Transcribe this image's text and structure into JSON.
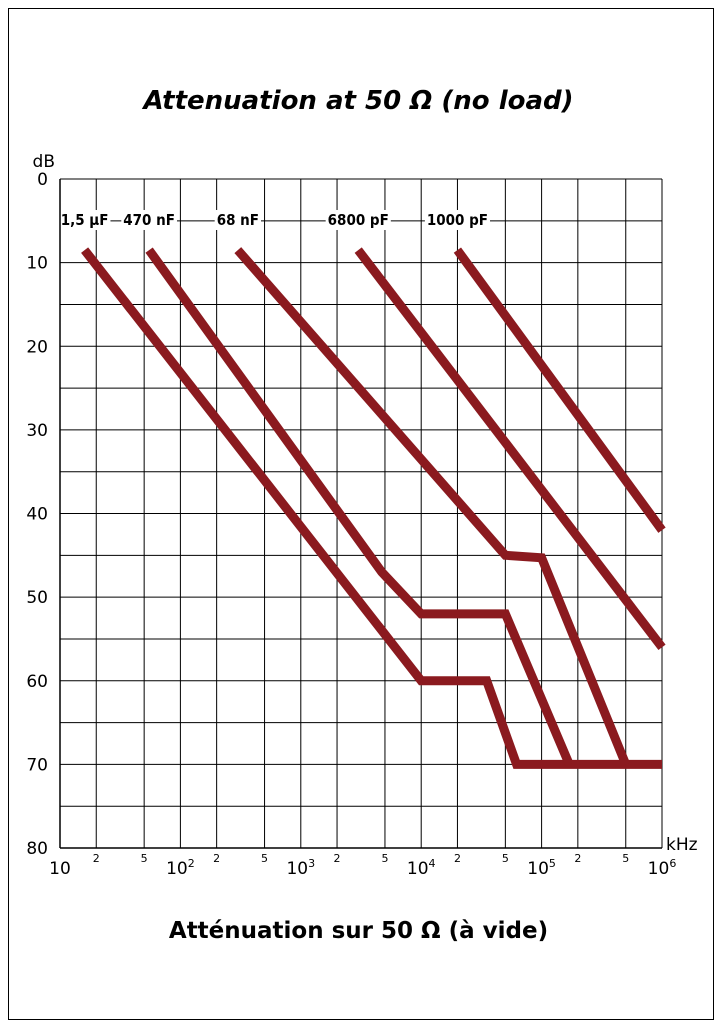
{
  "chart_data": {
    "type": "line",
    "title": "Attenuation at 50 Ω (no load)",
    "subtitle": "Atténuation sur 50 Ω (à vide)",
    "ylabel": "dB",
    "xlabel": "kHz",
    "x_scale": "log",
    "xlim": [
      10,
      1000000
    ],
    "ylim": [
      0,
      80
    ],
    "y_inverted": true,
    "grid": true,
    "y_ticks": [
      "0",
      "10",
      "20",
      "30",
      "40",
      "50",
      "60",
      "70",
      "80"
    ],
    "x_major_ticks": [
      {
        "base": "10",
        "exp": ""
      },
      {
        "base": "10",
        "exp": "2"
      },
      {
        "base": "10",
        "exp": "3"
      },
      {
        "base": "10",
        "exp": "4"
      },
      {
        "base": "10",
        "exp": "5"
      },
      {
        "base": "10",
        "exp": "6"
      }
    ],
    "x_minor_labels": [
      "2",
      "5",
      "2",
      "5",
      "2",
      "5",
      "2",
      "5",
      "2",
      "5"
    ],
    "series": [
      {
        "name": "1,5 µF",
        "color": "#8b1a1f",
        "points": [
          [
            16,
            8.5
          ],
          [
            10000,
            60
          ],
          [
            35000,
            60
          ],
          [
            62000,
            70
          ],
          [
            1000000,
            70
          ]
        ]
      },
      {
        "name": "470 nF",
        "color": "#8b1a1f",
        "points": [
          [
            55,
            8.5
          ],
          [
            4700,
            47
          ],
          [
            10000,
            52
          ],
          [
            50000,
            52
          ],
          [
            170000,
            70
          ]
        ]
      },
      {
        "name": "68 nF",
        "color": "#8b1a1f",
        "points": [
          [
            300,
            8.5
          ],
          [
            50000,
            45
          ],
          [
            100000,
            45.3
          ],
          [
            500000,
            70
          ]
        ]
      },
      {
        "name": "6800 pF",
        "color": "#8b1a1f",
        "points": [
          [
            3000,
            8.5
          ],
          [
            1000000,
            56
          ]
        ]
      },
      {
        "name": "1000 pF",
        "color": "#8b1a1f",
        "points": [
          [
            20000,
            8.5
          ],
          [
            1000000,
            42
          ]
        ]
      }
    ]
  }
}
